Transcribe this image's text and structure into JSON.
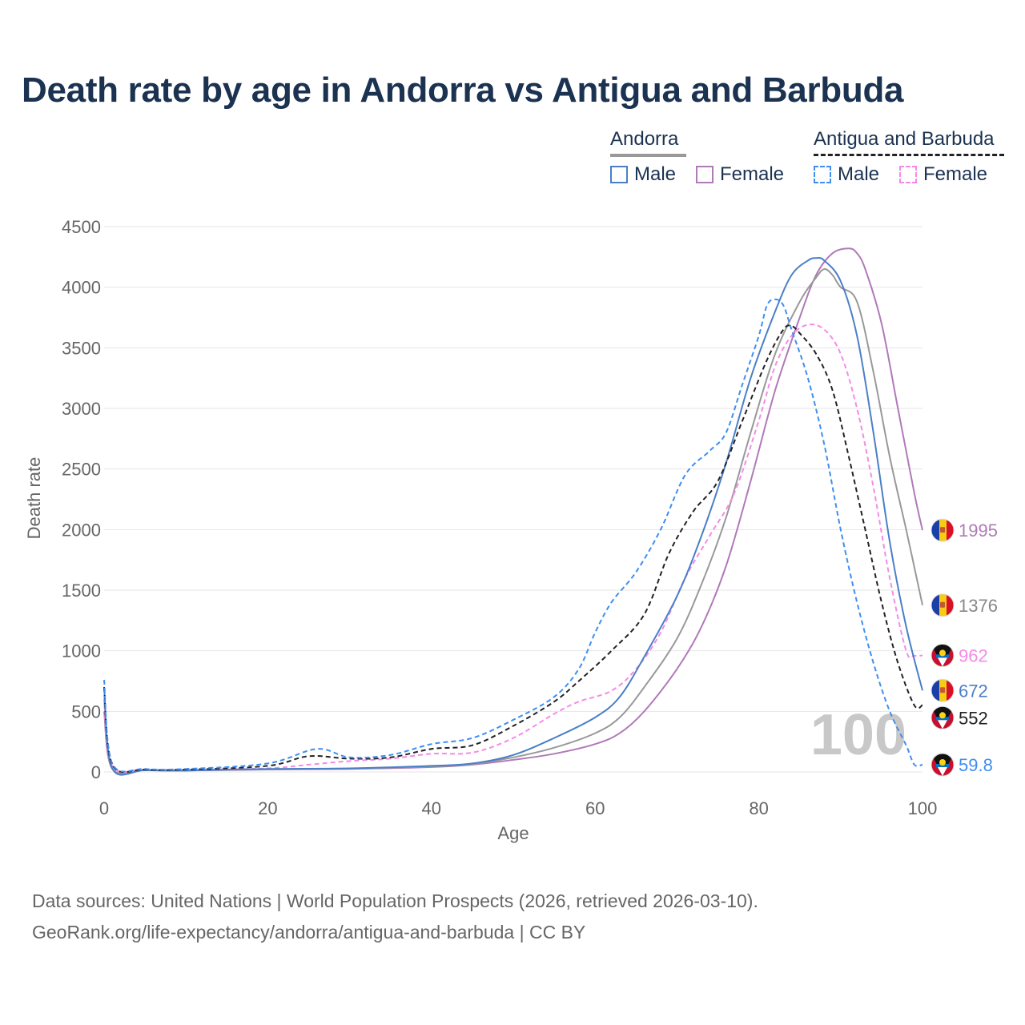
{
  "title": "Death rate by age in Andorra vs Antigua and Barbuda",
  "legend": {
    "andorra": {
      "title": "Andorra",
      "male": "Male",
      "female": "Female"
    },
    "antigua": {
      "title": "Antigua and Barbuda",
      "male": "Male",
      "female": "Female"
    }
  },
  "colors": {
    "andorra_male": "#4a7fc8",
    "andorra_female": "#b07ab8",
    "andorra_total": "#999999",
    "antigua_male": "#3f8ef0",
    "antigua_female": "#f58ae6",
    "antigua_total": "#222222"
  },
  "watermark": "100",
  "footer": {
    "line1": "Data sources: United Nations | World Population Prospects (2026, retrieved 2026-03-10).",
    "line2": "GeoRank.org/life-expectancy/andorra/antigua-and-barbuda | CC BY"
  },
  "chart_data": {
    "type": "line",
    "title": "Death rate by age in Andorra vs Antigua and Barbuda",
    "xlabel": "Age",
    "ylabel": "Death rate",
    "xlim": [
      0,
      100
    ],
    "ylim": [
      0,
      4500
    ],
    "xticks": [
      0,
      20,
      40,
      60,
      80,
      100
    ],
    "yticks": [
      0,
      500,
      1000,
      1500,
      2000,
      2500,
      3000,
      3500,
      4000,
      4500
    ],
    "series": [
      {
        "key": "andorra_female",
        "name": "Andorra Female",
        "dashed": false,
        "flag": "andorra",
        "end_label": "1995",
        "points": [
          [
            0,
            500
          ],
          [
            1,
            25
          ],
          [
            5,
            15
          ],
          [
            10,
            12
          ],
          [
            20,
            20
          ],
          [
            30,
            25
          ],
          [
            40,
            40
          ],
          [
            45,
            60
          ],
          [
            50,
            100
          ],
          [
            55,
            150
          ],
          [
            60,
            230
          ],
          [
            63,
            320
          ],
          [
            66,
            500
          ],
          [
            70,
            850
          ],
          [
            73,
            1200
          ],
          [
            76,
            1700
          ],
          [
            79,
            2400
          ],
          [
            82,
            3150
          ],
          [
            85,
            3750
          ],
          [
            87,
            4100
          ],
          [
            89,
            4280
          ],
          [
            91,
            4320
          ],
          [
            92,
            4280
          ],
          [
            93,
            4150
          ],
          [
            95,
            3700
          ],
          [
            97,
            3000
          ],
          [
            99,
            2300
          ],
          [
            100,
            1995
          ]
        ]
      },
      {
        "key": "andorra_total",
        "name": "Andorra Total",
        "dashed": false,
        "flag": "andorra",
        "end_label": "1376",
        "points": [
          [
            0,
            600
          ],
          [
            1,
            30
          ],
          [
            5,
            15
          ],
          [
            10,
            12
          ],
          [
            20,
            22
          ],
          [
            30,
            28
          ],
          [
            40,
            45
          ],
          [
            45,
            65
          ],
          [
            50,
            120
          ],
          [
            55,
            200
          ],
          [
            60,
            320
          ],
          [
            63,
            450
          ],
          [
            66,
            700
          ],
          [
            70,
            1100
          ],
          [
            73,
            1550
          ],
          [
            76,
            2100
          ],
          [
            79,
            2800
          ],
          [
            82,
            3450
          ],
          [
            85,
            3880
          ],
          [
            87,
            4080
          ],
          [
            88,
            4150
          ],
          [
            89,
            4100
          ],
          [
            90,
            4000
          ],
          [
            92,
            3880
          ],
          [
            94,
            3300
          ],
          [
            96,
            2600
          ],
          [
            98,
            2000
          ],
          [
            100,
            1376
          ]
        ]
      },
      {
        "key": "antigua_female",
        "name": "Antigua and Barbuda Female",
        "dashed": true,
        "flag": "antigua",
        "end_label": "962",
        "points": [
          [
            0,
            600
          ],
          [
            1,
            50
          ],
          [
            5,
            20
          ],
          [
            10,
            18
          ],
          [
            20,
            30
          ],
          [
            25,
            60
          ],
          [
            30,
            90
          ],
          [
            35,
            110
          ],
          [
            40,
            150
          ],
          [
            45,
            160
          ],
          [
            50,
            280
          ],
          [
            55,
            480
          ],
          [
            58,
            580
          ],
          [
            62,
            670
          ],
          [
            65,
            850
          ],
          [
            68,
            1150
          ],
          [
            71,
            1600
          ],
          [
            74,
            1950
          ],
          [
            77,
            2300
          ],
          [
            80,
            2900
          ],
          [
            82,
            3350
          ],
          [
            84,
            3600
          ],
          [
            86,
            3690
          ],
          [
            88,
            3650
          ],
          [
            90,
            3450
          ],
          [
            92,
            3000
          ],
          [
            94,
            2350
          ],
          [
            96,
            1600
          ],
          [
            98,
            1000
          ],
          [
            99,
            960
          ],
          [
            100,
            962
          ]
        ]
      },
      {
        "key": "andorra_male",
        "name": "Andorra Male",
        "dashed": false,
        "flag": "andorra",
        "end_label": "672",
        "points": [
          [
            0,
            700
          ],
          [
            1,
            30
          ],
          [
            5,
            15
          ],
          [
            10,
            12
          ],
          [
            20,
            25
          ],
          [
            30,
            30
          ],
          [
            40,
            50
          ],
          [
            45,
            70
          ],
          [
            50,
            140
          ],
          [
            55,
            280
          ],
          [
            60,
            450
          ],
          [
            63,
            620
          ],
          [
            66,
            950
          ],
          [
            70,
            1450
          ],
          [
            73,
            1950
          ],
          [
            76,
            2550
          ],
          [
            79,
            3250
          ],
          [
            82,
            3800
          ],
          [
            84,
            4100
          ],
          [
            86,
            4220
          ],
          [
            87,
            4240
          ],
          [
            88,
            4220
          ],
          [
            90,
            4050
          ],
          [
            92,
            3600
          ],
          [
            94,
            2800
          ],
          [
            96,
            1900
          ],
          [
            98,
            1200
          ],
          [
            100,
            672
          ]
        ]
      },
      {
        "key": "antigua_total",
        "name": "Antigua and Barbuda Total",
        "dashed": true,
        "flag": "antigua",
        "end_label": "552",
        "points": [
          [
            0,
            700
          ],
          [
            1,
            60
          ],
          [
            5,
            20
          ],
          [
            10,
            20
          ],
          [
            20,
            50
          ],
          [
            25,
            130
          ],
          [
            30,
            110
          ],
          [
            35,
            120
          ],
          [
            40,
            190
          ],
          [
            45,
            220
          ],
          [
            50,
            380
          ],
          [
            55,
            580
          ],
          [
            58,
            750
          ],
          [
            62,
            1000
          ],
          [
            66,
            1300
          ],
          [
            69,
            1800
          ],
          [
            72,
            2150
          ],
          [
            75,
            2400
          ],
          [
            78,
            2900
          ],
          [
            81,
            3400
          ],
          [
            83,
            3650
          ],
          [
            84,
            3680
          ],
          [
            85,
            3620
          ],
          [
            87,
            3450
          ],
          [
            89,
            3150
          ],
          [
            91,
            2600
          ],
          [
            93,
            2000
          ],
          [
            95,
            1400
          ],
          [
            97,
            900
          ],
          [
            99,
            550
          ],
          [
            100,
            552
          ]
        ]
      },
      {
        "key": "antigua_male",
        "name": "Antigua and Barbuda Male",
        "dashed": true,
        "flag": "antigua",
        "end_label": "59.8",
        "points": [
          [
            0,
            760
          ],
          [
            1,
            70
          ],
          [
            5,
            25
          ],
          [
            10,
            25
          ],
          [
            20,
            70
          ],
          [
            26,
            190
          ],
          [
            30,
            120
          ],
          [
            35,
            140
          ],
          [
            40,
            230
          ],
          [
            45,
            280
          ],
          [
            50,
            430
          ],
          [
            55,
            620
          ],
          [
            58,
            850
          ],
          [
            60,
            1150
          ],
          [
            62,
            1400
          ],
          [
            65,
            1650
          ],
          [
            68,
            2000
          ],
          [
            71,
            2450
          ],
          [
            74,
            2650
          ],
          [
            76,
            2800
          ],
          [
            78,
            3200
          ],
          [
            80,
            3600
          ],
          [
            81,
            3850
          ],
          [
            82,
            3900
          ],
          [
            83,
            3850
          ],
          [
            84,
            3650
          ],
          [
            86,
            3250
          ],
          [
            88,
            2700
          ],
          [
            90,
            2000
          ],
          [
            92,
            1400
          ],
          [
            94,
            900
          ],
          [
            96,
            500
          ],
          [
            98,
            220
          ],
          [
            99,
            60
          ],
          [
            100,
            59.8
          ]
        ]
      }
    ]
  }
}
